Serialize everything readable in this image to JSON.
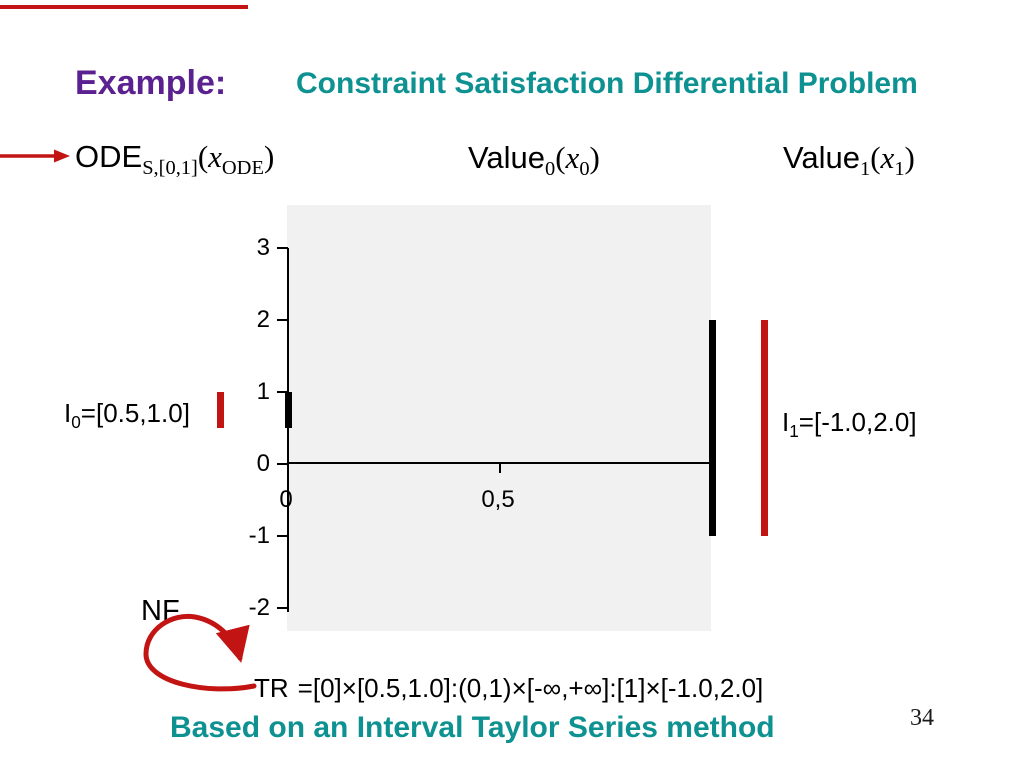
{
  "slide": {
    "example_label": "Example:",
    "title": "Constraint Satisfaction Differential Problem",
    "nf_label": "NF",
    "tr": {
      "name": "TR",
      "expr": "=[0]×[0.5,1.0]:(0,1)×[-∞,+∞]:[1]×[-1.0,2.0]"
    },
    "formulas": {
      "ode": {
        "name": "ODE",
        "sub": "S,[0,1]",
        "open": "(",
        "var": "x",
        "var_sub": "ODE",
        "close": ")"
      },
      "value0": {
        "name": "Value",
        "sub": "0",
        "open": "(",
        "var": "x",
        "var_sub": "0",
        "close": ")"
      },
      "value1": {
        "name": "Value",
        "sub": "1",
        "open": "(",
        "var": "x",
        "var_sub": "1",
        "close": ")"
      }
    },
    "footer_method": "Based on an Interval Taylor Series method",
    "page_number": "34",
    "colors": {
      "accent_red": "#C31414",
      "purple": "#5B2191",
      "teal": "#0E9191",
      "plot_background": "#F1F1F2",
      "bar_black": "#000000"
    }
  },
  "chart_data": {
    "type": "interval",
    "title": "",
    "xlabel": "",
    "ylabel": "",
    "grid": false,
    "legend": false,
    "x_axis": {
      "range": [
        0,
        1
      ],
      "ticks": [
        {
          "v": 0,
          "label": "0"
        },
        {
          "v": 0.5,
          "label": "0,5"
        },
        {
          "v": 1,
          "label": ""
        }
      ]
    },
    "y_axis": {
      "range": [
        -2,
        3
      ],
      "ticks": [
        {
          "v": 3,
          "label": "3"
        },
        {
          "v": 2,
          "label": "2"
        },
        {
          "v": 1,
          "label": "1"
        },
        {
          "v": 0,
          "label": "0"
        },
        {
          "v": -1,
          "label": "-1"
        },
        {
          "v": -2,
          "label": "-2"
        }
      ]
    },
    "intervals": [
      {
        "x": 0,
        "low": 0.5,
        "high": 1.0,
        "color": "black"
      },
      {
        "x": 1,
        "low": -1.0,
        "high": 2.0,
        "color": "black"
      }
    ],
    "annotations": [
      {
        "id": "I0",
        "side": "left",
        "low": 0.5,
        "high": 1.0,
        "label_prefix": "I",
        "label_sub": "0",
        "label_rest": "=[0.5,1.0]",
        "color": "red"
      },
      {
        "id": "I1",
        "side": "right",
        "low": -1.0,
        "high": 2.0,
        "label_prefix": "I",
        "label_sub": "1",
        "label_rest": "=[-1.0,2.0]",
        "color": "red"
      }
    ]
  }
}
